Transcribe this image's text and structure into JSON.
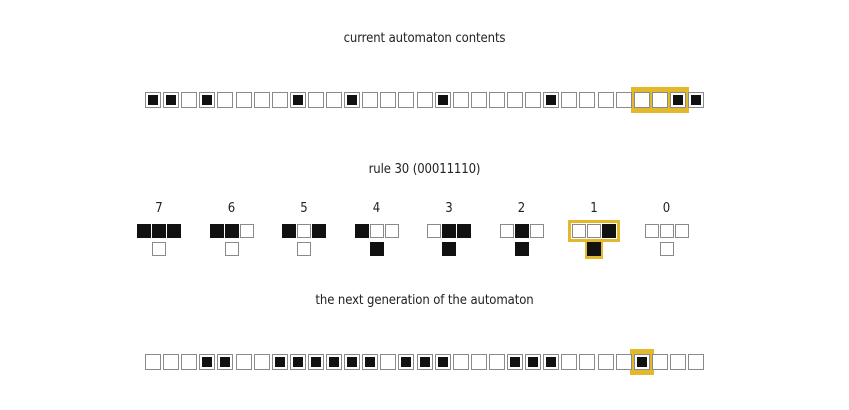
{
  "titles": {
    "current": "current automaton contents",
    "rule": "rule 30 (00011110)",
    "next": "the next generation of the automaton"
  },
  "colors": {
    "highlight": "#e2b92c",
    "filled": "#111111",
    "border": "#8a8a8a"
  },
  "current_generation": [
    1,
    1,
    0,
    1,
    0,
    0,
    0,
    0,
    1,
    0,
    0,
    1,
    0,
    0,
    0,
    0,
    1,
    0,
    0,
    0,
    0,
    0,
    1,
    0,
    0,
    0,
    0,
    0,
    0,
    1,
    1
  ],
  "current_highlight": {
    "start": 27,
    "end": 29
  },
  "rules": [
    {
      "number": "7",
      "pattern": [
        1,
        1,
        1
      ],
      "result": 0
    },
    {
      "number": "6",
      "pattern": [
        1,
        1,
        0
      ],
      "result": 0
    },
    {
      "number": "5",
      "pattern": [
        1,
        0,
        1
      ],
      "result": 0
    },
    {
      "number": "4",
      "pattern": [
        1,
        0,
        0
      ],
      "result": 1
    },
    {
      "number": "3",
      "pattern": [
        0,
        1,
        1
      ],
      "result": 1
    },
    {
      "number": "2",
      "pattern": [
        0,
        1,
        0
      ],
      "result": 1
    },
    {
      "number": "1",
      "pattern": [
        0,
        0,
        1
      ],
      "result": 1
    },
    {
      "number": "0",
      "pattern": [
        0,
        0,
        0
      ],
      "result": 0
    }
  ],
  "rule_highlight_index": 6,
  "next_generation": [
    0,
    0,
    0,
    1,
    1,
    0,
    0,
    1,
    1,
    1,
    1,
    1,
    1,
    0,
    1,
    1,
    1,
    0,
    0,
    0,
    1,
    1,
    1,
    0,
    0,
    0,
    0,
    1,
    0,
    0,
    0
  ],
  "next_highlight_index": 27
}
